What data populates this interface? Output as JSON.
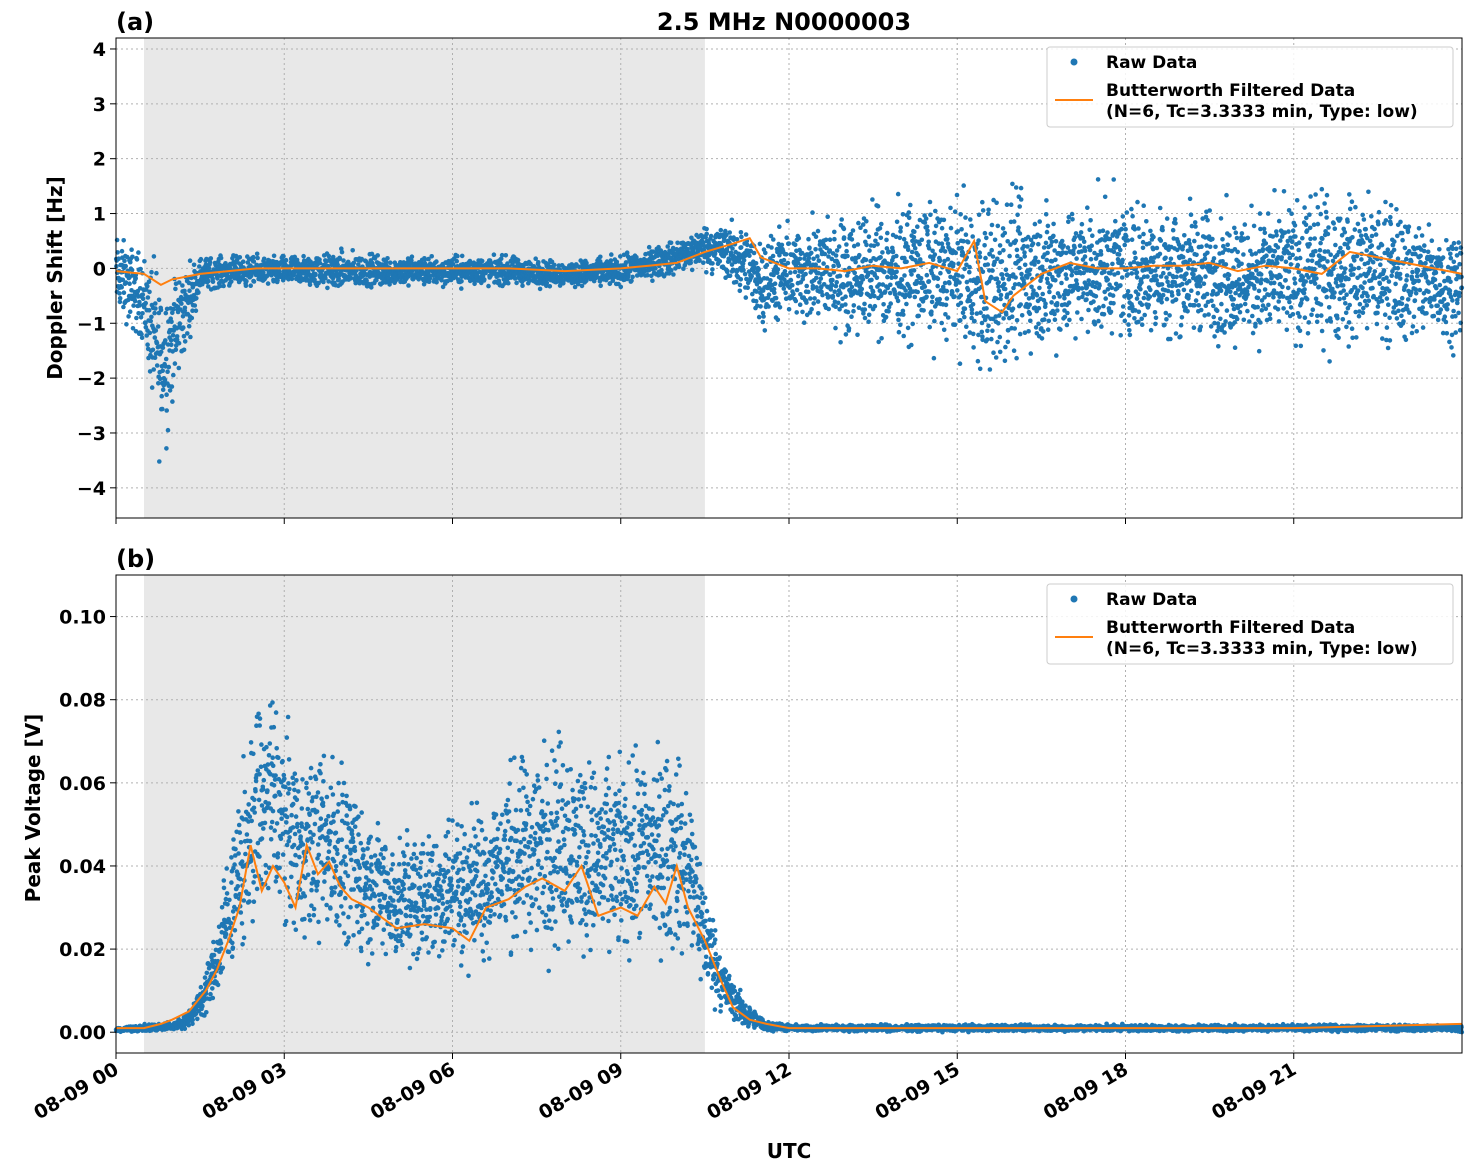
{
  "title": "2.5 MHz N0000003",
  "xlabel": "UTC",
  "colors": {
    "raw": "#1f77b4",
    "filtered": "#ff7f0e",
    "shade": "#e8e8e8",
    "grid": "#b0b0b0"
  },
  "legend": {
    "raw": "Raw Data",
    "filtered_line1": "Butterworth Filtered Data",
    "filtered_line2": "(N=6, Tc=3.3333 min, Type: low)"
  },
  "x_ticks": [
    {
      "label": "08-09 00",
      "hour": 0
    },
    {
      "label": "08-09 03",
      "hour": 3
    },
    {
      "label": "08-09 06",
      "hour": 6
    },
    {
      "label": "08-09 09",
      "hour": 9
    },
    {
      "label": "08-09 12",
      "hour": 12
    },
    {
      "label": "08-09 15",
      "hour": 15
    },
    {
      "label": "08-09 18",
      "hour": 18
    },
    {
      "label": "08-09 21",
      "hour": 21
    }
  ],
  "chart_data": [
    {
      "type": "scatter",
      "panel_label": "(a)",
      "ylabel": "Doppler Shift [Hz]",
      "xlim_hours": [
        0,
        24
      ],
      "ylim": [
        -4.55,
        4.2
      ],
      "y_ticks": [
        {
          "label": "4",
          "value": 4
        },
        {
          "label": "3",
          "value": 3
        },
        {
          "label": "2",
          "value": 2
        },
        {
          "label": "1",
          "value": 1
        },
        {
          "label": "0",
          "value": 0
        },
        {
          "label": "−1",
          "value": -1
        },
        {
          "label": "−2",
          "value": -2
        },
        {
          "label": "−3",
          "value": -3
        },
        {
          "label": "−4",
          "value": -4
        }
      ],
      "shaded_hours": [
        0.5,
        10.5
      ],
      "grid": true,
      "legend_position": "upper right",
      "series": [
        {
          "name": "Raw Data",
          "kind": "scatter",
          "hours": [
            0.0,
            0.5,
            0.8,
            1.0,
            1.5,
            2.0,
            3.0,
            4.0,
            5.0,
            6.0,
            7.0,
            8.0,
            9.0,
            10.0,
            10.5,
            11.0,
            11.5,
            12.0,
            13.0,
            14.0,
            15.0,
            15.5,
            16.0,
            17.0,
            18.0,
            19.0,
            20.0,
            21.0,
            22.0,
            23.0,
            24.0
          ],
          "upper": [
            0.8,
            0.5,
            0.5,
            0.3,
            0.3,
            0.3,
            0.3,
            0.4,
            0.3,
            0.3,
            0.3,
            0.2,
            0.3,
            0.6,
            0.9,
            1.0,
            0.8,
            1.0,
            1.3,
            1.5,
            1.6,
            1.8,
            1.8,
            1.6,
            1.6,
            1.5,
            1.4,
            1.6,
            1.8,
            1.4,
            1.0
          ],
          "lower": [
            -1.0,
            -1.6,
            -4.1,
            -2.9,
            -0.5,
            -0.4,
            -0.4,
            -0.5,
            -0.4,
            -0.4,
            -0.4,
            -0.4,
            -0.4,
            -0.2,
            -0.1,
            -0.5,
            -1.3,
            -1.2,
            -1.5,
            -1.6,
            -1.7,
            -2.6,
            -2.2,
            -1.7,
            -1.6,
            -1.6,
            -1.7,
            -1.8,
            -1.8,
            -1.7,
            -1.6
          ]
        },
        {
          "name": "Butterworth Filtered Data",
          "kind": "line",
          "hours": [
            0.0,
            0.5,
            0.8,
            1.0,
            1.5,
            2.0,
            2.5,
            3.0,
            4.0,
            5.0,
            6.0,
            7.0,
            8.0,
            9.0,
            9.5,
            10.0,
            10.5,
            11.0,
            11.3,
            11.5,
            12.0,
            12.5,
            13.0,
            13.5,
            14.0,
            14.5,
            15.0,
            15.3,
            15.5,
            15.8,
            16.0,
            16.5,
            17.0,
            17.5,
            18.0,
            18.5,
            19.0,
            19.5,
            20.0,
            20.5,
            21.0,
            21.5,
            22.0,
            22.5,
            23.0,
            23.5,
            24.0
          ],
          "values": [
            -0.05,
            -0.1,
            -0.3,
            -0.2,
            -0.1,
            -0.05,
            0.0,
            0.0,
            0.0,
            0.0,
            0.0,
            0.0,
            -0.05,
            0.0,
            0.05,
            0.1,
            0.3,
            0.45,
            0.55,
            0.2,
            0.0,
            0.0,
            -0.05,
            0.05,
            0.0,
            0.1,
            -0.05,
            0.5,
            -0.6,
            -0.8,
            -0.5,
            -0.1,
            0.1,
            0.0,
            0.0,
            0.05,
            0.05,
            0.1,
            -0.05,
            0.05,
            0.0,
            -0.1,
            0.3,
            0.2,
            0.1,
            0.0,
            -0.1
          ]
        }
      ]
    },
    {
      "type": "scatter",
      "panel_label": "(b)",
      "ylabel": "Peak Voltage [V]",
      "xlim_hours": [
        0,
        24
      ],
      "ylim": [
        -0.005,
        0.11
      ],
      "y_ticks": [
        {
          "label": "0.10",
          "value": 0.1
        },
        {
          "label": "0.08",
          "value": 0.08
        },
        {
          "label": "0.06",
          "value": 0.06
        },
        {
          "label": "0.04",
          "value": 0.04
        },
        {
          "label": "0.02",
          "value": 0.02
        },
        {
          "label": "0.00",
          "value": 0.0
        }
      ],
      "shaded_hours": [
        0.5,
        10.5
      ],
      "grid": true,
      "legend_position": "upper right",
      "series": [
        {
          "name": "Raw Data",
          "kind": "scatter",
          "hours": [
            0.0,
            0.5,
            1.0,
            1.2,
            1.5,
            1.8,
            2.0,
            2.3,
            2.5,
            2.8,
            3.0,
            3.3,
            3.7,
            4.0,
            4.3,
            4.7,
            5.0,
            5.5,
            6.0,
            6.5,
            7.0,
            7.5,
            8.0,
            8.5,
            9.0,
            9.5,
            10.0,
            10.3,
            10.5,
            10.8,
            11.0,
            11.3,
            11.6,
            12.0,
            15.0,
            18.0,
            21.0,
            24.0
          ],
          "upper": [
            0.001,
            0.002,
            0.003,
            0.004,
            0.012,
            0.028,
            0.048,
            0.07,
            0.088,
            0.092,
            0.082,
            0.072,
            0.075,
            0.073,
            0.062,
            0.055,
            0.05,
            0.053,
            0.057,
            0.06,
            0.07,
            0.076,
            0.082,
            0.072,
            0.07,
            0.076,
            0.074,
            0.062,
            0.04,
            0.022,
            0.014,
            0.007,
            0.003,
            0.002,
            0.002,
            0.002,
            0.002,
            0.002
          ],
          "lower": [
            0.0,
            0.0,
            0.0,
            0.0,
            0.002,
            0.006,
            0.01,
            0.014,
            0.018,
            0.02,
            0.02,
            0.018,
            0.016,
            0.016,
            0.014,
            0.012,
            0.012,
            0.012,
            0.012,
            0.012,
            0.012,
            0.012,
            0.012,
            0.012,
            0.012,
            0.012,
            0.012,
            0.01,
            0.006,
            0.003,
            0.001,
            0.0,
            0.0,
            0.0,
            0.0,
            0.0,
            0.0,
            0.0
          ]
        },
        {
          "name": "Butterworth Filtered Data",
          "kind": "line",
          "hours": [
            0.0,
            0.5,
            0.8,
            1.0,
            1.3,
            1.6,
            1.8,
            2.0,
            2.2,
            2.4,
            2.6,
            2.8,
            3.0,
            3.2,
            3.4,
            3.6,
            3.8,
            4.0,
            4.2,
            4.5,
            5.0,
            5.5,
            6.0,
            6.3,
            6.6,
            7.0,
            7.3,
            7.6,
            8.0,
            8.3,
            8.6,
            9.0,
            9.3,
            9.6,
            9.8,
            10.0,
            10.2,
            10.5,
            10.8,
            11.0,
            11.3,
            11.6,
            12.0,
            15.0,
            18.0,
            21.0,
            24.0
          ],
          "values": [
            0.001,
            0.001,
            0.002,
            0.003,
            0.005,
            0.01,
            0.015,
            0.022,
            0.03,
            0.045,
            0.034,
            0.04,
            0.036,
            0.03,
            0.045,
            0.038,
            0.041,
            0.035,
            0.032,
            0.03,
            0.025,
            0.026,
            0.025,
            0.022,
            0.03,
            0.032,
            0.035,
            0.037,
            0.034,
            0.04,
            0.028,
            0.03,
            0.028,
            0.035,
            0.031,
            0.04,
            0.03,
            0.022,
            0.012,
            0.006,
            0.003,
            0.002,
            0.001,
            0.001,
            0.001,
            0.001,
            0.002
          ]
        }
      ]
    }
  ]
}
